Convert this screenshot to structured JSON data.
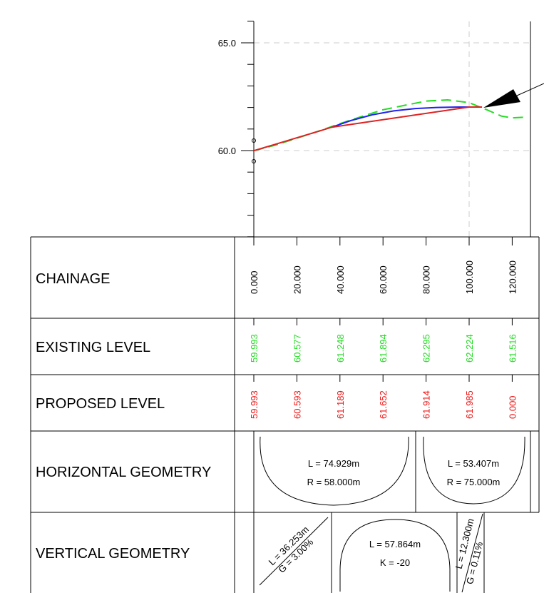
{
  "chart_data": {
    "type": "line",
    "y_ticks": [
      "65.0",
      "60.0"
    ],
    "ylim": [
      56.0,
      66.5
    ],
    "xlim": [
      0,
      129
    ],
    "grid": true,
    "series": [
      {
        "color": "#22dd22",
        "style": "dashed",
        "x": [
          0,
          10,
          20,
          30,
          40,
          50,
          60,
          70,
          80,
          90,
          100,
          108,
          115,
          120,
          126
        ],
        "y": [
          59.993,
          60.25,
          60.577,
          60.9,
          61.248,
          61.58,
          61.894,
          62.1,
          62.295,
          62.35,
          62.224,
          61.9,
          61.6,
          61.516,
          61.55
        ]
      },
      {
        "color": "#2222ee",
        "style": "solid",
        "x": [
          36,
          45,
          55,
          65,
          75,
          85,
          95,
          100
        ],
        "y": [
          61.08,
          61.39,
          61.66,
          61.84,
          61.95,
          62.0,
          62.02,
          62.02
        ]
      },
      {
        "color": "#dd2222",
        "style": "solid",
        "x": [
          0,
          10,
          20,
          30,
          36,
          100,
          106
        ],
        "y": [
          59.993,
          60.29,
          60.593,
          60.89,
          61.08,
          62.02,
          62.02
        ]
      }
    ],
    "arrow_tip": [
      106,
      62.0
    ]
  },
  "table": {
    "chainage": {
      "label": "CHAINAGE",
      "values": [
        "0.000",
        "20.000",
        "40.000",
        "60.000",
        "80.000",
        "100.000",
        "120.000"
      ]
    },
    "existing": {
      "label": "EXISTING LEVEL",
      "color": "#22dd22",
      "values": [
        "59.993",
        "60.577",
        "61.248",
        "61.894",
        "62.295",
        "62.224",
        "61.516"
      ]
    },
    "proposed": {
      "label": "PROPOSED LEVEL",
      "color": "#ee1111",
      "values": [
        "59.993",
        "60.593",
        "61.189",
        "61.652",
        "61.914",
        "61.985",
        "0.000"
      ]
    },
    "horizontal": {
      "label": "HORIZONTAL GEOMETRY",
      "curve1": {
        "line1": "L = 74.929m",
        "line2": "R = 58.000m"
      },
      "curve2": {
        "line1": "L = 53.407m",
        "line2": "R = 75.000m"
      }
    },
    "vertical": {
      "label": "VERTICAL GEOMETRY",
      "grade1": {
        "line1": "L = 36.253m",
        "line2": "G = 3.00%"
      },
      "curve": {
        "line1": "L = 57.864m",
        "line2": "K = -20"
      },
      "grade2": {
        "line1": "L = 12.300m",
        "line2": "G = 0.11%"
      }
    }
  }
}
